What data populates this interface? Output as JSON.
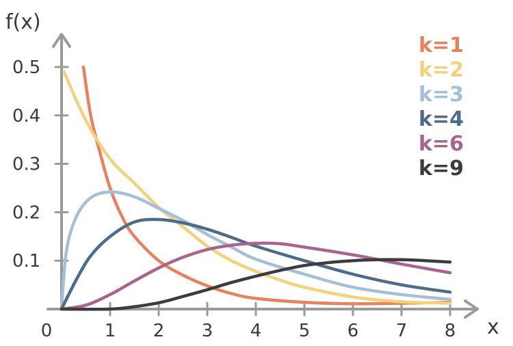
{
  "chart_data": {
    "type": "line",
    "xlabel": "x",
    "ylabel": "f(x)",
    "xlim": [
      0,
      8
    ],
    "ylim": [
      0,
      0.5
    ],
    "x_ticks": [
      "0",
      "1",
      "2",
      "3",
      "4",
      "5",
      "6",
      "7",
      "8"
    ],
    "y_ticks": [
      "0.1",
      "0.2",
      "0.3",
      "0.4",
      "0.5"
    ],
    "grid": false,
    "legend_position": "top-right",
    "series": [
      {
        "name": "k=1",
        "color": "#e8825e",
        "x": [
          0.45,
          0.6,
          0.8,
          1.0,
          1.25,
          1.5,
          2.0,
          2.5,
          3.0,
          3.5,
          4.0,
          5.0,
          6.0,
          7.0,
          8.0
        ],
        "y": [
          0.5,
          0.4,
          0.32,
          0.25,
          0.19,
          0.15,
          0.1,
          0.07,
          0.048,
          0.032,
          0.022,
          0.014,
          0.011,
          0.012,
          0.014
        ]
      },
      {
        "name": "k=2",
        "color": "#f2d27a",
        "x": [
          0.05,
          0.5,
          1.0,
          1.5,
          2.0,
          2.5,
          3.0,
          3.5,
          4.0,
          4.5,
          5.0,
          6.0,
          7.0,
          8.0
        ],
        "y": [
          0.49,
          0.39,
          0.31,
          0.26,
          0.21,
          0.17,
          0.13,
          0.1,
          0.078,
          0.06,
          0.045,
          0.025,
          0.015,
          0.012
        ]
      },
      {
        "name": "k=3",
        "color": "#a5bfd9",
        "x": [
          0.0,
          0.1,
          0.3,
          0.6,
          1.0,
          1.5,
          2.0,
          2.5,
          3.0,
          3.5,
          4.0,
          5.0,
          6.0,
          7.0,
          8.0
        ],
        "y": [
          0.0,
          0.12,
          0.19,
          0.23,
          0.242,
          0.232,
          0.208,
          0.183,
          0.154,
          0.128,
          0.103,
          0.072,
          0.045,
          0.03,
          0.02
        ]
      },
      {
        "name": "k=4",
        "color": "#4f6b8a",
        "x": [
          0.0,
          0.3,
          0.6,
          1.0,
          1.5,
          2.0,
          2.5,
          3.0,
          3.5,
          4.0,
          5.0,
          6.0,
          7.0,
          8.0
        ],
        "y": [
          0.0,
          0.06,
          0.11,
          0.15,
          0.18,
          0.185,
          0.178,
          0.165,
          0.148,
          0.13,
          0.1,
          0.072,
          0.05,
          0.035
        ]
      },
      {
        "name": "k=6",
        "color": "#a8648f",
        "x": [
          0.0,
          0.5,
          1.0,
          1.5,
          2.0,
          2.5,
          3.0,
          3.5,
          4.0,
          4.5,
          5.0,
          6.0,
          7.0,
          8.0
        ],
        "y": [
          0.0,
          0.008,
          0.03,
          0.058,
          0.085,
          0.107,
          0.123,
          0.132,
          0.136,
          0.135,
          0.128,
          0.112,
          0.093,
          0.075
        ]
      },
      {
        "name": "k=9",
        "color": "#3c3c3c",
        "x": [
          0.0,
          1.0,
          1.5,
          2.0,
          2.5,
          3.0,
          3.5,
          4.0,
          4.5,
          5.0,
          5.5,
          6.0,
          6.5,
          7.0,
          7.5,
          8.0
        ],
        "y": [
          0.0,
          0.0,
          0.005,
          0.013,
          0.026,
          0.04,
          0.055,
          0.068,
          0.08,
          0.09,
          0.096,
          0.1,
          0.102,
          0.102,
          0.1,
          0.097
        ]
      }
    ]
  }
}
